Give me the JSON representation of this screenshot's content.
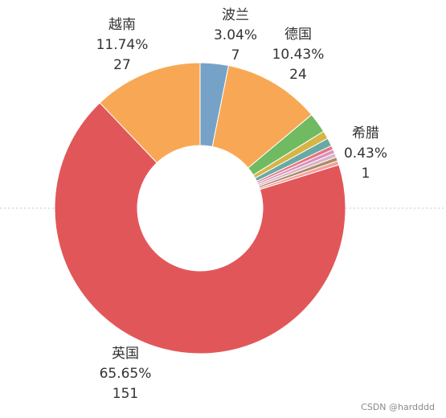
{
  "chart_data": {
    "type": "pie",
    "donut": true,
    "slices": [
      {
        "name": "波兰",
        "percent": "3.04%",
        "value": 7,
        "color": "#76A2C8"
      },
      {
        "name": "德国",
        "percent": "10.43%",
        "value": 24,
        "color": "#F8A854"
      },
      {
        "name": "",
        "percent": "",
        "value": 5,
        "color": "#70BA61"
      },
      {
        "name": "",
        "percent": "",
        "value": 2,
        "color": "#D6B446"
      },
      {
        "name": "",
        "percent": "",
        "value": 2,
        "color": "#68A9A6"
      },
      {
        "name": "",
        "percent": "",
        "value": 1,
        "color": "#E8747A"
      },
      {
        "name": "",
        "percent": "",
        "value": 1,
        "color": "#D994C2"
      },
      {
        "name": "",
        "percent": "",
        "value": 1,
        "color": "#D7B4C4"
      },
      {
        "name": "",
        "percent": "",
        "value": 1,
        "color": "#AE8A66"
      },
      {
        "name": "希腊",
        "percent": "0.43%",
        "value": 1,
        "color": "#F4A0A0"
      },
      {
        "name": "英国",
        "percent": "65.65%",
        "value": 151,
        "color": "#E15759"
      },
      {
        "name": "越南",
        "percent": "11.74%",
        "value": 27,
        "color": "#F8A854"
      }
    ],
    "labeled": [
      "越南",
      "波兰",
      "德国",
      "希腊",
      "英国"
    ]
  },
  "watermark": "CSDN @hardddd"
}
